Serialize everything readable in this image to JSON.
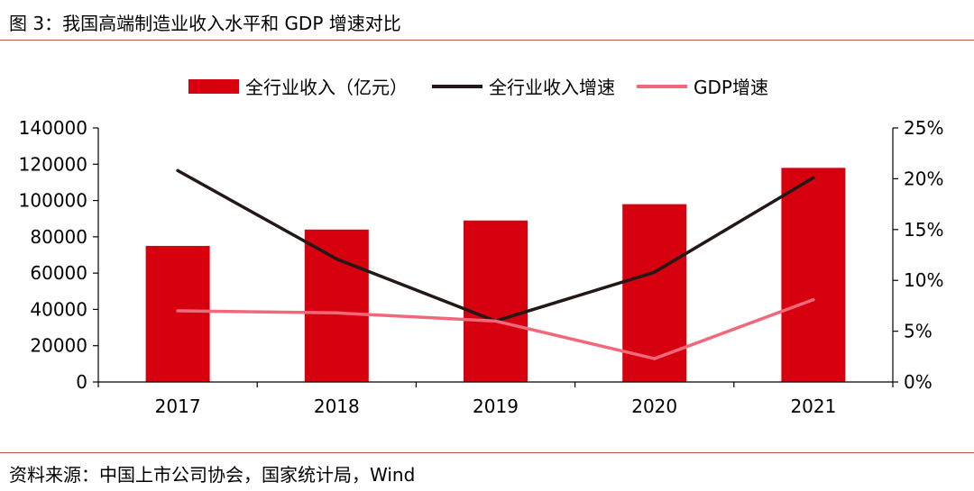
{
  "figure_title": "图 3：我国高端制造业收入水平和 GDP 增速对比",
  "source_note": "资料来源：中国上市公司协会，国家统计局，Wind",
  "chart_data": {
    "type": "bar",
    "categories": [
      "2017",
      "2018",
      "2019",
      "2020",
      "2021"
    ],
    "series": [
      {
        "name": "全行业收入（亿元）",
        "type": "bar",
        "axis": "left",
        "color": "#d7000f",
        "values": [
          75000,
          84000,
          89000,
          98000,
          118000
        ]
      },
      {
        "name": "全行业收入增速",
        "type": "line",
        "axis": "right",
        "color": "#231815",
        "values": [
          20.8,
          12.1,
          6.0,
          10.8,
          20.1
        ]
      },
      {
        "name": "GDP增速",
        "type": "line",
        "axis": "right",
        "color": "#f0697a",
        "values": [
          7.0,
          6.8,
          6.0,
          2.3,
          8.1
        ]
      }
    ],
    "y_left": {
      "min": 0,
      "max": 140000,
      "step": 20000,
      "ticks": [
        "0",
        "20000",
        "40000",
        "60000",
        "80000",
        "100000",
        "120000",
        "140000"
      ]
    },
    "y_right": {
      "min": 0,
      "max": 25,
      "step": 5,
      "ticks": [
        "0%",
        "5%",
        "10%",
        "15%",
        "20%",
        "25%"
      ]
    },
    "legend_position": "top",
    "grid": false
  }
}
